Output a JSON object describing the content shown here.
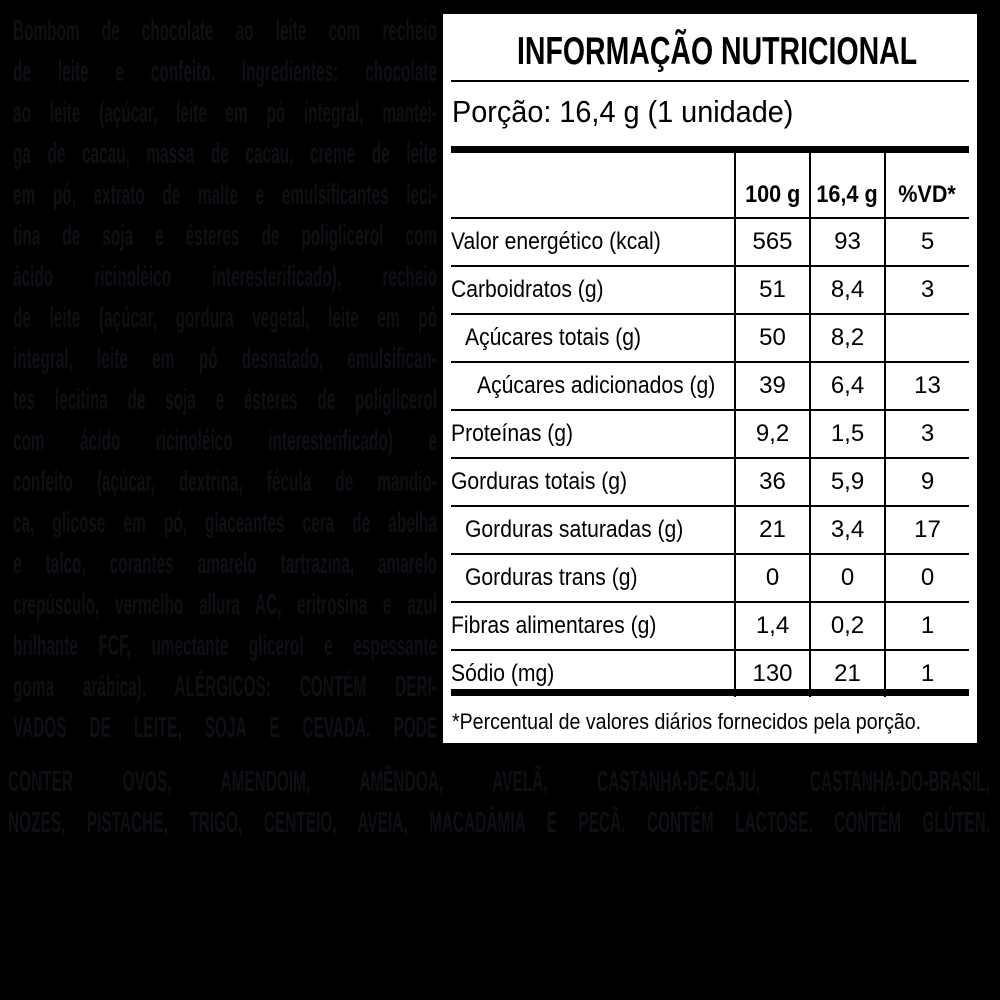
{
  "colors": {
    "background": "#000000",
    "panel_bg": "#ffffff",
    "panel_text": "#000000",
    "faint_text": "#0f0f16"
  },
  "ingredients": {
    "lines": [
      "Bombom de chocolate ao leite com recheio",
      "de leite e confeito. Ingredientes: chocolate",
      "ao leite (açúcar, leite em pó integral, mantei-",
      "ga de cacau, massa de cacau, creme de leite",
      "em pó, extrato de malte e emulsificantes leci-",
      "tina de soja e ésteres de poliglicerol com",
      "ácido ricinoléico interesterificado), recheio",
      "de leite (açúcar, gordura vegetal, leite em pó",
      "integral, leite em pó desnatado, emulsifican-",
      "tes lecitina de soja e ésteres de poliglicerol",
      "com ácido ricinoléico interesterificado) e",
      "confeito (açúcar, dextrina, fécula de mandio-",
      "ca, glicose em pó, glaceantes cera de abelha",
      "e talco, corantes amarelo tartrazina, amarelo",
      "crepúsculo, vermelho allura AC, eritrosina e azul",
      "brilhante FCF, umectante glicerol e espessante",
      "goma arábica). ALÉRGICOS: CONTÉM DERI-",
      "VADOS DE LEITE, SOJA E CEVADA. PODE"
    ]
  },
  "allergens": {
    "lines": [
      "CONTER OVOS, AMENDOIM, AMÊNDOA, AVELÃ, CASTANHA-DE-CAJU, CASTANHA-DO-BRASIL,",
      "NOZES, PISTACHE, TRIGO, CENTEIO, AVEIA, MACADÂMIA E PECÃ. CONTÉM LACTOSE. CONTÉM GLÚTEN."
    ]
  },
  "panel": {
    "title": "INFORMAÇÃO NUTRICIONAL",
    "serving": "Porção: 16,4 g (1 unidade)",
    "columns": [
      "100 g",
      "16,4 g",
      "%VD*"
    ],
    "rows": [
      {
        "label": "Valor energético (kcal)",
        "indent": 0,
        "v100": "565",
        "vportion": "93",
        "vd": "5"
      },
      {
        "label": "Carboidratos (g)",
        "indent": 0,
        "v100": "51",
        "vportion": "8,4",
        "vd": "3"
      },
      {
        "label": "Açúcares totais (g)",
        "indent": 1,
        "v100": "50",
        "vportion": "8,2",
        "vd": ""
      },
      {
        "label": "Açúcares adicionados (g)",
        "indent": 2,
        "v100": "39",
        "vportion": "6,4",
        "vd": "13"
      },
      {
        "label": "Proteínas (g)",
        "indent": 0,
        "v100": "9,2",
        "vportion": "1,5",
        "vd": "3"
      },
      {
        "label": "Gorduras totais (g)",
        "indent": 0,
        "v100": "36",
        "vportion": "5,9",
        "vd": "9"
      },
      {
        "label": "Gorduras saturadas (g)",
        "indent": 1,
        "v100": "21",
        "vportion": "3,4",
        "vd": "17"
      },
      {
        "label": "Gorduras trans (g)",
        "indent": 1,
        "v100": "0",
        "vportion": "0",
        "vd": "0"
      },
      {
        "label": "Fibras alimentares (g)",
        "indent": 0,
        "v100": "1,4",
        "vportion": "0,2",
        "vd": "1"
      },
      {
        "label": "Sódio (mg)",
        "indent": 0,
        "v100": "130",
        "vportion": "21",
        "vd": "1"
      }
    ],
    "footnote": "*Percentual de valores diários fornecidos pela porção."
  }
}
